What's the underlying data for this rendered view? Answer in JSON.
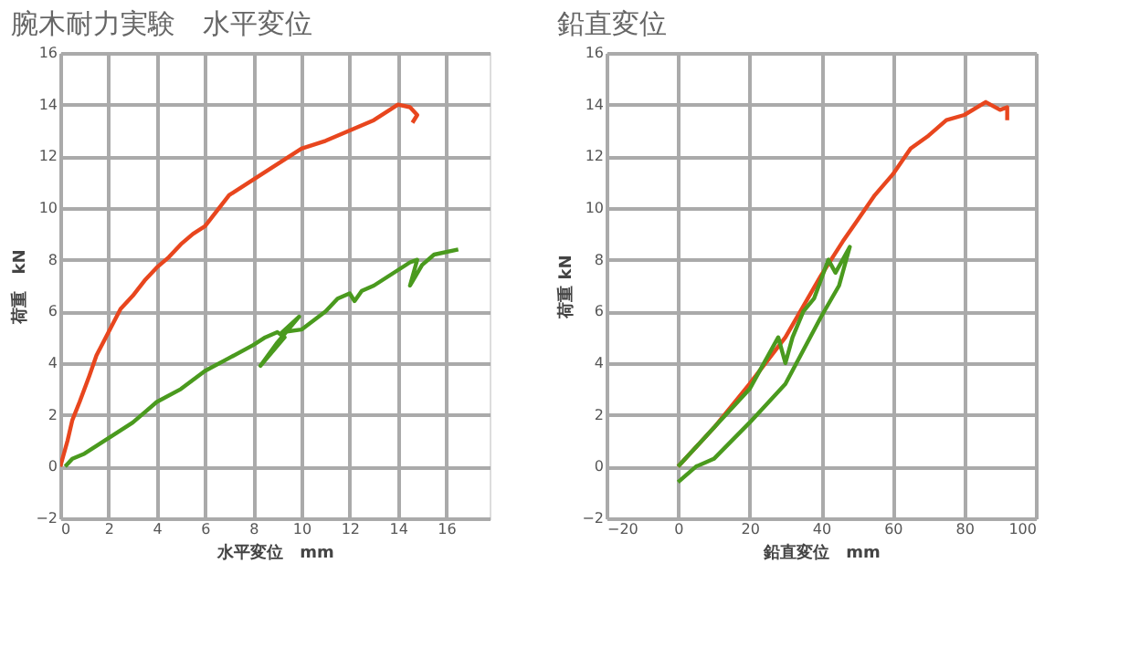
{
  "chart_data": [
    {
      "type": "line",
      "title": "腕木耐力実験　水平変位",
      "xlabel": "水平変位　mm",
      "ylabel": "荷重　kN",
      "xlim": [
        0,
        17.8
      ],
      "xticks": [
        0,
        2,
        4,
        6,
        8,
        10,
        12,
        14,
        16
      ],
      "ylim": [
        -2,
        16
      ],
      "yticks": [
        -2,
        0,
        2,
        4,
        6,
        8,
        10,
        12,
        14,
        16
      ],
      "grid": true,
      "legend": false,
      "marker": "none",
      "line_style": "solid",
      "series": [
        {
          "color": "#e8461e",
          "x": [
            0,
            0.3,
            0.5,
            0.8,
            1.2,
            1.5,
            2,
            2.5,
            3,
            3.5,
            4,
            4.5,
            5,
            5.5,
            6,
            6.5,
            7,
            8,
            9,
            10,
            11,
            12,
            13,
            14,
            14.5,
            14.8,
            14.6
          ],
          "values": [
            0,
            1,
            1.8,
            2.5,
            3.5,
            4.3,
            5.2,
            6.1,
            6.6,
            7.2,
            7.7,
            8.1,
            8.6,
            9,
            9.3,
            9.9,
            10.5,
            11.1,
            11.7,
            12.3,
            12.6,
            13,
            13.4,
            14,
            13.9,
            13.6,
            13.3
          ]
        },
        {
          "color": "#4a9a1e",
          "x": [
            0.2,
            0.5,
            1,
            2,
            3,
            3.5,
            4,
            5,
            6,
            7,
            8,
            8.5,
            9,
            9.3,
            8.3,
            9,
            9.9,
            9.2,
            10,
            11,
            11.5,
            12,
            12.2,
            12.5,
            13,
            14,
            14.5,
            14.8,
            14.5,
            15,
            15.5,
            16.5
          ],
          "values": [
            0,
            0.3,
            0.5,
            1.1,
            1.7,
            2.1,
            2.5,
            3,
            3.7,
            4.2,
            4.7,
            5,
            5.2,
            5,
            3.9,
            4.8,
            5.8,
            5.2,
            5.3,
            6,
            6.5,
            6.7,
            6.4,
            6.8,
            7,
            7.6,
            7.9,
            8,
            7,
            7.8,
            8.2,
            8.4
          ]
        }
      ]
    },
    {
      "type": "line",
      "title": "鉛直変位",
      "xlabel": "鉛直変位　mm",
      "ylabel": "荷重 kN",
      "xlim": [
        -20,
        100
      ],
      "xticks": [
        -20,
        0,
        20,
        40,
        60,
        80,
        100
      ],
      "ylim": [
        -2,
        16
      ],
      "yticks": [
        -2,
        0,
        2,
        4,
        6,
        8,
        10,
        12,
        14,
        16
      ],
      "grid": true,
      "legend": false,
      "marker": "none",
      "line_style": "solid",
      "series": [
        {
          "color": "#e8461e",
          "x": [
            0,
            10,
            20,
            30,
            40,
            46,
            50,
            55,
            60,
            65,
            70,
            75,
            80,
            86,
            90,
            92,
            92
          ],
          "values": [
            0,
            1.5,
            3.2,
            5,
            7.4,
            8.7,
            9.5,
            10.5,
            11.3,
            12.3,
            12.8,
            13.4,
            13.6,
            14.1,
            13.8,
            13.9,
            13.4
          ]
        },
        {
          "color": "#4a9a1e",
          "x": [
            0,
            5,
            10,
            20,
            30,
            40,
            45,
            48,
            44,
            42,
            38,
            35,
            32,
            30,
            28,
            20,
            10,
            0
          ],
          "values": [
            -0.6,
            0,
            0.3,
            1.7,
            3.2,
            5.8,
            7,
            8.5,
            7.5,
            8,
            6.5,
            6,
            5,
            4,
            5,
            3,
            1.5,
            0
          ]
        }
      ]
    }
  ]
}
